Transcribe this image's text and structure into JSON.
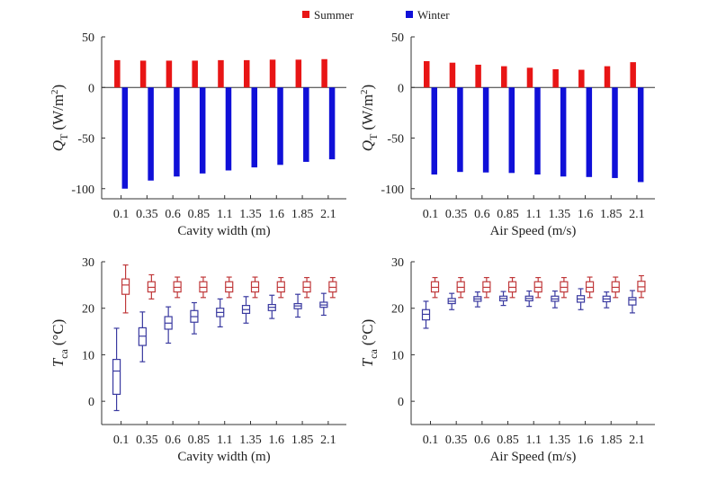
{
  "legend": {
    "position": "top-center",
    "items": [
      {
        "label": "Summer",
        "color": "#e81515"
      },
      {
        "label": "Winter",
        "color": "#1010d8"
      }
    ]
  },
  "chart_data": [
    {
      "type": "bar",
      "xlabel": "Cavity width (m)",
      "ylabel_main": "Q",
      "ylabel_sub": "T",
      "ylabel_unit": "(W/m",
      "ylabel_sup": "2",
      "ylabel_close": ")",
      "categories": [
        "0.1",
        "0.35",
        "0.6",
        "0.85",
        "1.1",
        "1.35",
        "1.6",
        "1.85",
        "2.1"
      ],
      "ylim": [
        -110,
        50
      ],
      "yticks": [
        50,
        0,
        -50,
        -100
      ],
      "series": [
        {
          "name": "Summer",
          "color": "#e81515",
          "values": [
            27,
            26.5,
            26.5,
            26.5,
            27,
            27,
            27.5,
            27.5,
            28
          ]
        },
        {
          "name": "Winter",
          "color": "#1010d8",
          "values": [
            -100,
            -92,
            -88,
            -85,
            -82,
            -79,
            -76.5,
            -73.5,
            -71
          ]
        }
      ]
    },
    {
      "type": "bar",
      "xlabel": "Air Speed (m/s)",
      "ylabel_main": "Q",
      "ylabel_sub": "T",
      "ylabel_unit": "(W/m",
      "ylabel_sup": "2",
      "ylabel_close": ")",
      "categories": [
        "0.1",
        "0.35",
        "0.6",
        "0.85",
        "1.1",
        "1.35",
        "1.6",
        "1.85",
        "2.1"
      ],
      "ylim": [
        -110,
        50
      ],
      "yticks": [
        50,
        0,
        -50,
        -100
      ],
      "series": [
        {
          "name": "Summer",
          "color": "#e81515",
          "values": [
            26,
            24.5,
            22.5,
            21,
            19.5,
            18,
            17.5,
            21,
            25
          ]
        },
        {
          "name": "Winter",
          "color": "#1010d8",
          "values": [
            -86,
            -83.5,
            -84,
            -84.5,
            -86,
            -88,
            -88.5,
            -89.5,
            -93.5
          ]
        }
      ]
    },
    {
      "type": "box",
      "xlabel": "Cavity width (m)",
      "ylabel_main": "T",
      "ylabel_sub": "ca",
      "ylabel_unit": "(°C)",
      "categories": [
        "0.1",
        "0.35",
        "0.6",
        "0.85",
        "1.1",
        "1.35",
        "1.6",
        "1.85",
        "2.1"
      ],
      "ylim": [
        -5,
        30
      ],
      "yticks": [
        30,
        20,
        10,
        0
      ],
      "series": [
        {
          "name": "Winter",
          "color": "#3a3aa0",
          "boxes": [
            [
              -2,
              1.5,
              6.5,
              9,
              15.7
            ],
            [
              8.5,
              12,
              14,
              15.8,
              19.2
            ],
            [
              12.5,
              15.5,
              16.8,
              18.2,
              20.3
            ],
            [
              14.5,
              17,
              18.2,
              19.5,
              21.2
            ],
            [
              16,
              18.2,
              19.1,
              20,
              22
            ],
            [
              16.8,
              18.9,
              19.7,
              20.6,
              22.5
            ],
            [
              17.8,
              19.5,
              20.2,
              20.8,
              22.8
            ],
            [
              18.1,
              19.9,
              20.5,
              21,
              23
            ],
            [
              18.5,
              20.2,
              20.7,
              21.3,
              23.2
            ]
          ]
        },
        {
          "name": "Summer",
          "color": "#c0393b",
          "boxes": [
            [
              19,
              23,
              25,
              26.3,
              29.3
            ],
            [
              22,
              23.5,
              24.5,
              25.7,
              27.2
            ],
            [
              22.3,
              23.5,
              24.5,
              25.7,
              26.7
            ],
            [
              22.3,
              23.5,
              24.5,
              25.7,
              26.7
            ],
            [
              22.3,
              23.5,
              24.5,
              25.7,
              26.7
            ],
            [
              22.3,
              23.5,
              24.5,
              25.7,
              26.7
            ],
            [
              22.3,
              23.5,
              24.5,
              25.7,
              26.6
            ],
            [
              22.3,
              23.5,
              24.5,
              25.7,
              26.6
            ],
            [
              22.3,
              23.5,
              24.5,
              25.7,
              26.6
            ]
          ]
        }
      ]
    },
    {
      "type": "box",
      "xlabel": "Air Speed (m/s)",
      "ylabel_main": "T",
      "ylabel_sub": "ca",
      "ylabel_unit": "(°C)",
      "categories": [
        "0.1",
        "0.35",
        "0.6",
        "0.85",
        "1.1",
        "1.35",
        "1.6",
        "1.85",
        "2.1"
      ],
      "ylim": [
        -5,
        30
      ],
      "yticks": [
        30,
        20,
        10,
        0
      ],
      "series": [
        {
          "name": "Winter",
          "color": "#3a3aa0",
          "boxes": [
            [
              15.7,
              17.5,
              18.7,
              19.7,
              21.5
            ],
            [
              19.7,
              21,
              21.5,
              22.1,
              23.2
            ],
            [
              20.3,
              21.5,
              22,
              22.5,
              23.5
            ],
            [
              20.6,
              21.6,
              22.1,
              22.6,
              23.6
            ],
            [
              20.4,
              21.6,
              22.1,
              22.6,
              23.7
            ],
            [
              20.1,
              21.5,
              22,
              22.6,
              23.7
            ],
            [
              19.7,
              21.3,
              22,
              22.7,
              24.2
            ],
            [
              20.1,
              21.4,
              22,
              22.6,
              23.5
            ],
            [
              19,
              20.7,
              21.8,
              22.3,
              23.8
            ]
          ]
        },
        {
          "name": "Summer",
          "color": "#c0393b",
          "boxes": [
            [
              22.3,
              23.5,
              24.5,
              25.7,
              26.6
            ],
            [
              22.3,
              23.5,
              24.5,
              25.7,
              26.6
            ],
            [
              22.3,
              23.5,
              24.5,
              25.7,
              26.6
            ],
            [
              22.3,
              23.5,
              24.5,
              25.7,
              26.6
            ],
            [
              22.3,
              23.5,
              24.5,
              25.7,
              26.6
            ],
            [
              22.3,
              23.5,
              24.5,
              25.7,
              26.6
            ],
            [
              22.3,
              23.5,
              24.5,
              25.7,
              26.7
            ],
            [
              22.3,
              23.5,
              24.5,
              25.7,
              26.7
            ],
            [
              22.3,
              23.6,
              24.6,
              25.8,
              27
            ]
          ]
        }
      ]
    }
  ]
}
